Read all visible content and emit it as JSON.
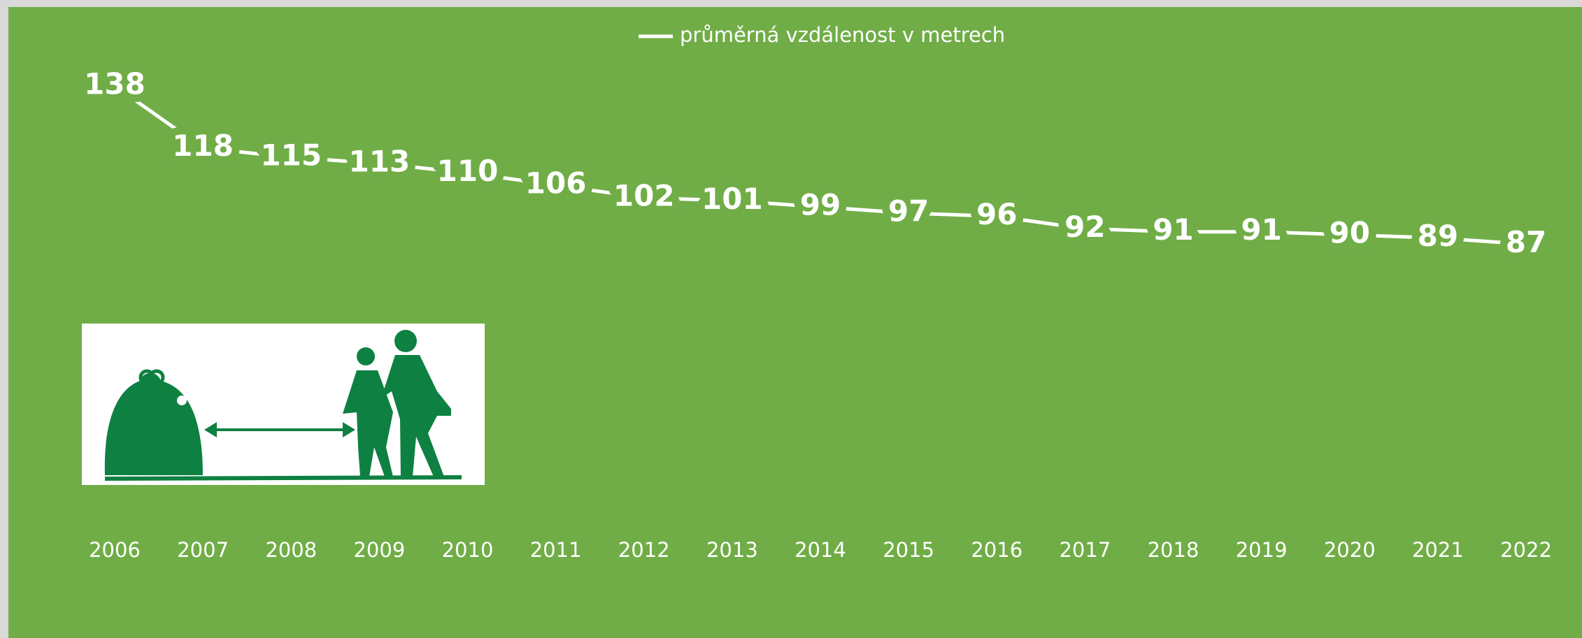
{
  "chart_data": {
    "type": "line",
    "categories": [
      "2006",
      "2007",
      "2008",
      "2009",
      "2010",
      "2011",
      "2012",
      "2013",
      "2014",
      "2015",
      "2016",
      "2017",
      "2018",
      "2019",
      "2020",
      "2021",
      "2022"
    ],
    "series": [
      {
        "name": "průměrná vzdálenost v metrech",
        "color": "#ffffff",
        "values": [
          138,
          118,
          115,
          113,
          110,
          106,
          102,
          101,
          99,
          97,
          96,
          92,
          91,
          91,
          90,
          89,
          87
        ]
      }
    ],
    "ylim": [
      0,
      140
    ],
    "background": "#70ad47",
    "legend": "top"
  }
}
